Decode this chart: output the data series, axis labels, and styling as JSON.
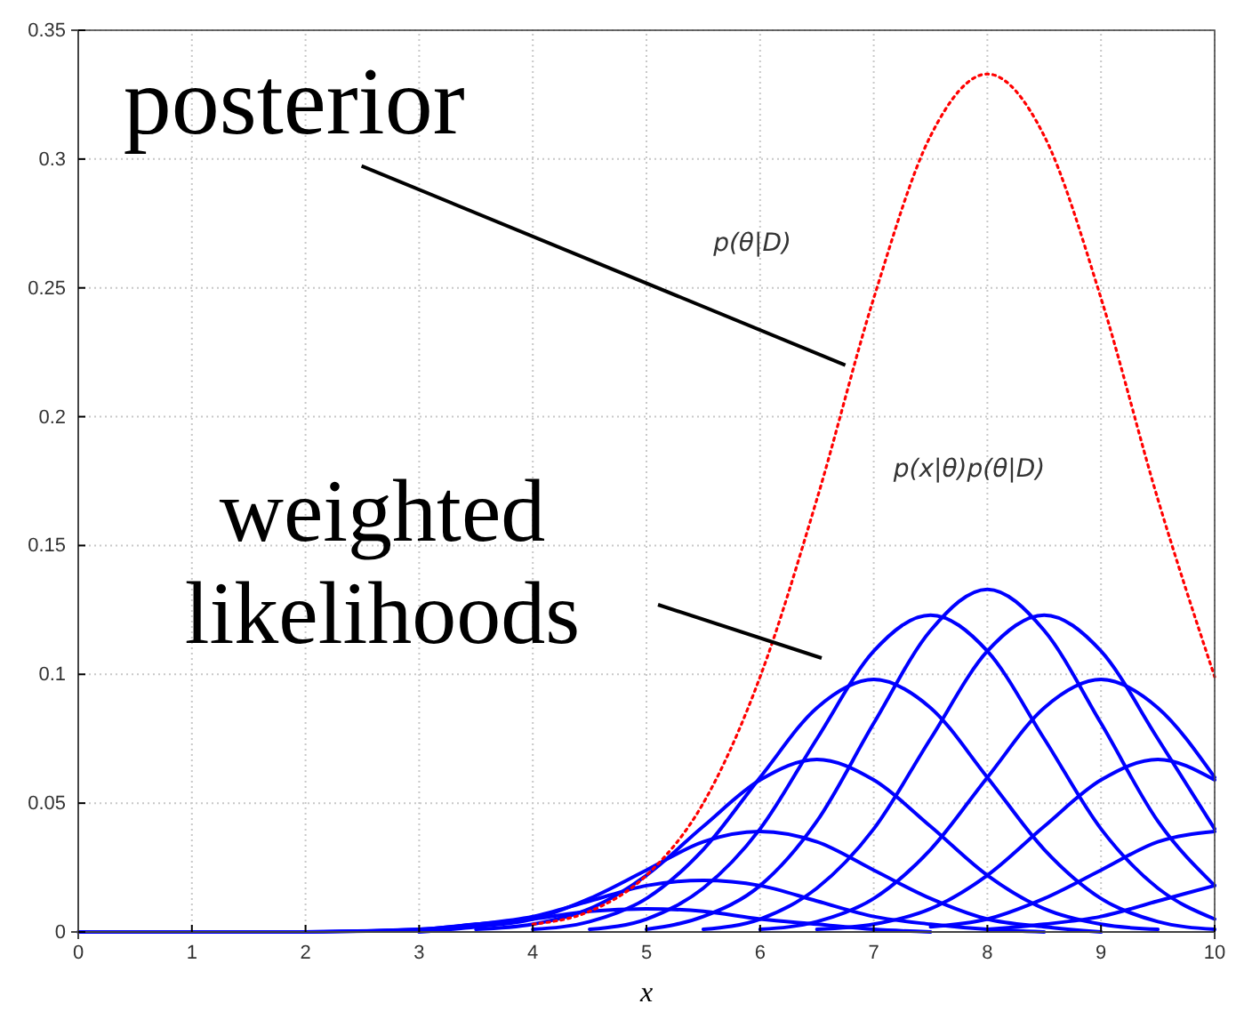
{
  "chart_data": {
    "type": "line",
    "xlabel": "x",
    "x": [
      0,
      1,
      2,
      3,
      3.5,
      4,
      4.5,
      5,
      5.5,
      6,
      6.5,
      7,
      7.5,
      8,
      8.5,
      9,
      9.5,
      10
    ],
    "xlim": [
      0,
      10
    ],
    "xticks": [
      0,
      1,
      2,
      3,
      4,
      5,
      6,
      7,
      8,
      9,
      10
    ],
    "ylim": [
      0,
      0.35
    ],
    "yticks": [
      0,
      0.05,
      0.1,
      0.15,
      0.2,
      0.25,
      0.3,
      0.35
    ],
    "grid": true,
    "series": [
      {
        "color": "#ff0000",
        "line_style": "dotted",
        "values": [
          null,
          null,
          null,
          null,
          null,
          0.003,
          0.008,
          0.022,
          0.05,
          0.099,
          0.168,
          0.246,
          0.309,
          0.333,
          0.309,
          0.246,
          0.168,
          0.099
        ]
      },
      {
        "color": "#0000ff",
        "values": [
          0,
          0,
          0,
          0.001,
          0.003,
          0.005,
          0.008,
          0.009,
          0.008,
          0.005,
          0.003,
          0.001,
          0,
          null,
          null,
          null,
          null,
          null
        ]
      },
      {
        "color": "#0000ff",
        "values": [
          null,
          null,
          0,
          0.001,
          0.003,
          0.006,
          0.012,
          0.018,
          0.02,
          0.018,
          0.012,
          0.006,
          0.003,
          0.001,
          0,
          null,
          null,
          null
        ]
      },
      {
        "color": "#0000ff",
        "values": [
          null,
          null,
          null,
          0,
          0.002,
          0.005,
          0.013,
          0.024,
          0.035,
          0.039,
          0.035,
          0.024,
          0.013,
          0.005,
          0.002,
          0,
          null,
          null
        ]
      },
      {
        "color": "#0000ff",
        "values": [
          null,
          null,
          null,
          null,
          0.001,
          0.003,
          0.009,
          0.022,
          0.041,
          0.059,
          0.067,
          0.059,
          0.041,
          0.022,
          0.009,
          0.003,
          0.001,
          null
        ]
      },
      {
        "color": "#0000ff",
        "values": [
          null,
          null,
          null,
          null,
          null,
          0.001,
          0.004,
          0.013,
          0.032,
          0.06,
          0.087,
          0.098,
          0.087,
          0.06,
          0.032,
          0.013,
          0.004,
          0.001
        ]
      },
      {
        "color": "#0000ff",
        "values": [
          null,
          null,
          null,
          null,
          null,
          null,
          0.001,
          0.005,
          0.017,
          0.04,
          0.075,
          0.109,
          0.123,
          0.109,
          0.075,
          0.04,
          0.017,
          0.005
        ]
      },
      {
        "color": "#0000ff",
        "values": [
          null,
          null,
          null,
          null,
          null,
          null,
          null,
          0.001,
          0.006,
          0.018,
          0.043,
          0.081,
          0.117,
          0.133,
          0.117,
          0.081,
          0.043,
          0.018
        ]
      },
      {
        "color": "#0000ff",
        "values": [
          null,
          null,
          null,
          null,
          null,
          null,
          null,
          null,
          0.001,
          0.005,
          0.017,
          0.04,
          0.075,
          0.109,
          0.123,
          0.109,
          0.075,
          0.04
        ]
      },
      {
        "color": "#0000ff",
        "values": [
          null,
          null,
          null,
          null,
          null,
          null,
          null,
          null,
          null,
          0.001,
          0.004,
          0.013,
          0.032,
          0.06,
          0.087,
          0.098,
          0.087,
          0.06
        ]
      },
      {
        "color": "#0000ff",
        "values": [
          null,
          null,
          null,
          null,
          null,
          null,
          null,
          null,
          null,
          null,
          0.001,
          0.003,
          0.009,
          0.022,
          0.041,
          0.059,
          0.067,
          0.059
        ]
      },
      {
        "color": "#0000ff",
        "values": [
          null,
          null,
          null,
          null,
          null,
          null,
          null,
          null,
          null,
          null,
          null,
          null,
          0.002,
          0.005,
          0.013,
          0.024,
          0.035,
          0.039
        ]
      },
      {
        "color": "#0000ff",
        "values": [
          null,
          null,
          null,
          null,
          null,
          null,
          null,
          null,
          null,
          null,
          null,
          null,
          null,
          0.001,
          0.003,
          0.006,
          0.012,
          0.018
        ]
      }
    ],
    "annotations": [
      {
        "text": "posterior",
        "x": 6.75,
        "y": 0.22
      },
      "weighted likelihoods",
      "p(θ|D)",
      "p(x|θ)p(θ|D)"
    ]
  }
}
